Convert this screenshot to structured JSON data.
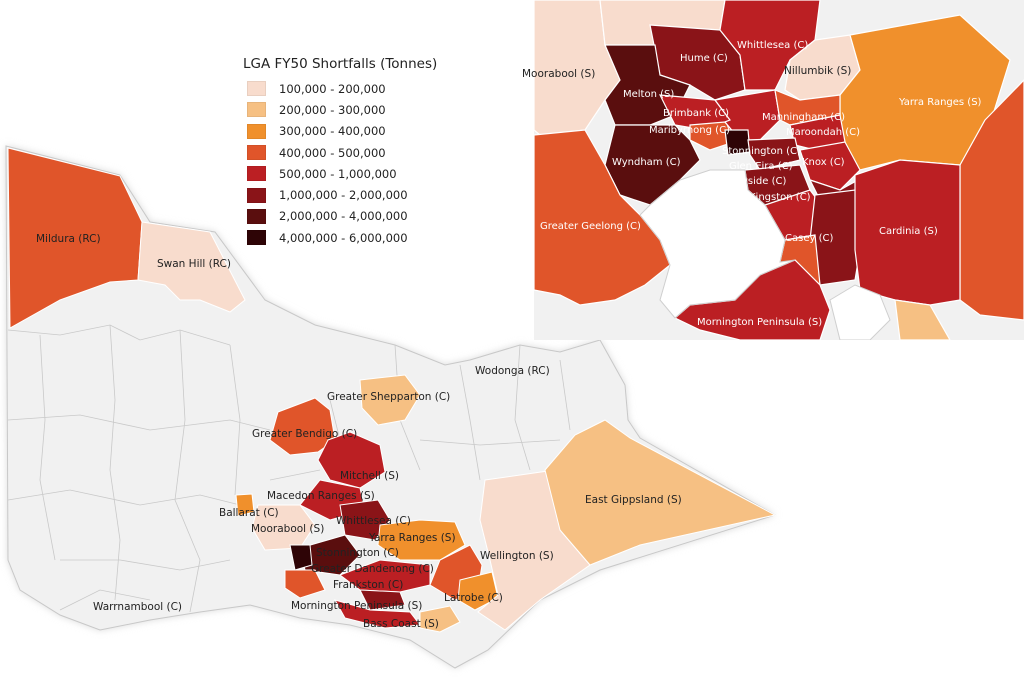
{
  "legend": {
    "title": "LGA FY50 Shortfalls (Tonnes)",
    "items": [
      {
        "label": "100,000 - 200,000",
        "color": "#f8dccd"
      },
      {
        "label": "200,000 - 300,000",
        "color": "#f6c083"
      },
      {
        "label": "300,000 - 400,000",
        "color": "#f0902c"
      },
      {
        "label": "400,000 - 500,000",
        "color": "#e0552a"
      },
      {
        "label": "500,000 - 1,000,000",
        "color": "#bb1f23"
      },
      {
        "label": "1,000,000 - 2,000,000",
        "color": "#8a1418"
      },
      {
        "label": "2,000,000 - 4,000,000",
        "color": "#5a0e0e"
      },
      {
        "label": "4,000,000 - 6,000,000",
        "color": "#2e0406"
      }
    ]
  },
  "main_map_labels": {
    "mildura": "Mildura (RC)",
    "swan_hill": "Swan Hill (RC)",
    "wodonga": "Wodonga (RC)",
    "greater_shepparton": "Greater Shepparton (C)",
    "greater_bendigo": "Greater Bendigo (C)",
    "mitchell": "Mitchell (S)",
    "macedon_ranges": "Macedon Ranges (S)",
    "ballarat": "Ballarat (C)",
    "moorabool": "Moorabool (S)",
    "whittlesea": "Whittlesea (C)",
    "yarra_ranges": "Yarra Ranges (S)",
    "stonnington": "Stonnington (C)",
    "greater_dandenong": "Greater Dandenong (C)",
    "frankston": "Frankston (C)",
    "mornington_peninsula": "Mornington Peninsula (S)",
    "bass_coast": "Bass Coast (S)",
    "latrobe": "Latrobe (C)",
    "wellington": "Wellington (S)",
    "east_gippsland": "East Gippsland (S)",
    "warrnambool": "Warrnambool (C)"
  },
  "inset_map_labels": {
    "moorabool": "Moorabool (S)",
    "hume": "Hume (C)",
    "whittlesea": "Whittlesea (C)",
    "nillumbik": "Nillumbik (S)",
    "melton": "Melton (S)",
    "brimbank": "Brimbank (C)",
    "maribyrnong": "Maribyrnong (C)",
    "manningham": "Manningham (C)",
    "maroondah": "Maroondah (C)",
    "yarra_ranges": "Yarra Ranges (S)",
    "stonnington": "Stonnington (C)",
    "glen_eira": "Glen Eira (C)",
    "knox": "Knox (C)",
    "wyndham": "Wyndham (C)",
    "bayside": "Bayside (C)",
    "kingston": "Kingston (C)",
    "greater_geelong": "Greater Geelong (C)",
    "casey": "Casey (C)",
    "cardinia": "Cardinia (S)",
    "mornington_peninsula": "Mornington Peninsula (S)"
  }
}
